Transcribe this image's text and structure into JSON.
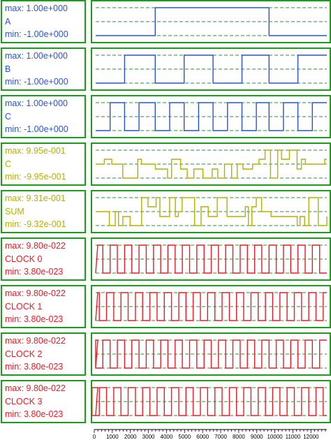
{
  "channels": [
    {
      "max": "max: 1.00e+000",
      "name": "A",
      "min": "min: -1.00e+000",
      "color": "#2b55c4",
      "kind": "square",
      "transitions": [
        3300,
        9600
      ],
      "initial": 0
    },
    {
      "max": "max: 1.00e+000",
      "name": "B",
      "min": "min: -1.00e+000",
      "color": "#2b55c4",
      "kind": "square",
      "transitions": [
        1600,
        3300,
        4900,
        6500,
        8100,
        9600,
        11200
      ],
      "initial": 0
    },
    {
      "max": "max: 1.00e+000",
      "name": "C",
      "min": "min: -1.00e+000",
      "color": "#2b55c4",
      "kind": "square",
      "transitions": [
        800,
        1600,
        2400,
        3300,
        4100,
        4900,
        5700,
        6500,
        7300,
        8100,
        8900,
        9600,
        10400,
        11200,
        12000
      ],
      "initial": 0
    },
    {
      "max": "max: 9.95e-001",
      "name": "C",
      "min": "min: -9.95e-001",
      "color": "#b5b000",
      "kind": "noisy"
    },
    {
      "max": "max: 9.31e-001",
      "name": "SUM",
      "min": "min: -9.32e-001",
      "color": "#b5b000",
      "kind": "noisy"
    },
    {
      "max": "max: 9.80e-022",
      "name": "CLOCK 0",
      "min": "min: 3.80e-023",
      "color": "#e0202a",
      "kind": "clock",
      "period": 800,
      "phase": 0
    },
    {
      "max": "max: 9.80e-022",
      "name": "CLOCK 1",
      "min": "min: 3.80e-023",
      "color": "#e0202a",
      "kind": "clock",
      "period": 800,
      "phase": 200
    },
    {
      "max": "max: 9.80e-022",
      "name": "CLOCK 2",
      "min": "min: 3.80e-023",
      "color": "#e0202a",
      "kind": "clock",
      "period": 800,
      "phase": 400
    },
    {
      "max": "max: 9.80e-022",
      "name": "CLOCK 3",
      "min": "min: 3.80e-023",
      "color": "#e0202a",
      "kind": "clock",
      "period": 800,
      "phase": 600
    }
  ],
  "axis": {
    "ticks": [
      "0",
      "1000",
      "2000",
      "3000",
      "4000",
      "5000",
      "6000",
      "7000",
      "8000",
      "9000",
      "10000",
      "11000",
      "12000"
    ],
    "range": [
      0,
      12800
    ]
  },
  "colors": {
    "frame": "#1f9a1f",
    "reference_dash": "#1f9a1f"
  }
}
